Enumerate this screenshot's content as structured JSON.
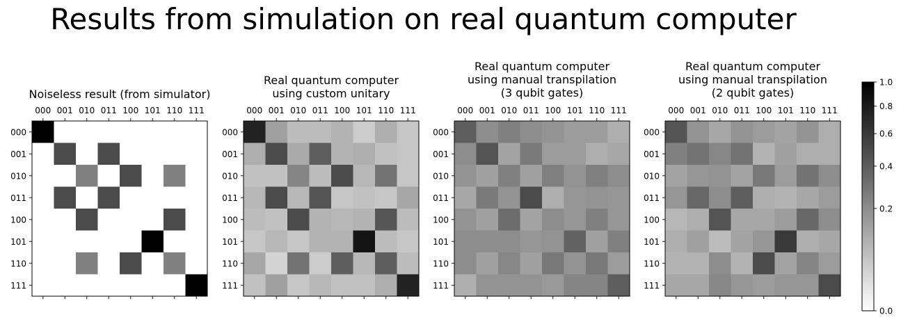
{
  "figure": {
    "title": "Results from simulation on real quantum computer"
  },
  "chart_data": [
    {
      "type": "heatmap",
      "title": "Noiseless result (from simulator)",
      "x_tick_labels": [
        "000",
        "001",
        "010",
        "011",
        "100",
        "101",
        "110",
        "111"
      ],
      "y_tick_labels": [
        "000",
        "001",
        "010",
        "011",
        "100",
        "101",
        "110",
        "111"
      ],
      "values": [
        [
          1.0,
          0,
          0,
          0,
          0,
          0,
          0,
          0
        ],
        [
          0,
          0.5,
          0,
          0.5,
          0,
          0,
          0,
          0
        ],
        [
          0,
          0,
          0.25,
          0,
          0.5,
          0,
          0.25,
          0
        ],
        [
          0,
          0.5,
          0,
          0.5,
          0,
          0,
          0,
          0
        ],
        [
          0,
          0,
          0.5,
          0,
          0,
          0,
          0.5,
          0
        ],
        [
          0,
          0,
          0,
          0,
          0,
          1.0,
          0,
          0
        ],
        [
          0,
          0,
          0.25,
          0,
          0.5,
          0,
          0.25,
          0
        ],
        [
          0,
          0,
          0,
          0,
          0,
          0,
          0,
          1.0
        ]
      ]
    },
    {
      "type": "heatmap",
      "title": "Real quantum computer\nusing custom unitary",
      "x_tick_labels": [
        "000",
        "001",
        "010",
        "011",
        "100",
        "101",
        "110",
        "111"
      ],
      "y_tick_labels": [
        "000",
        "001",
        "010",
        "011",
        "100",
        "101",
        "110",
        "111"
      ],
      "values": [
        [
          0.75,
          0.14,
          0.07,
          0.07,
          0.09,
          0.04,
          0.1,
          0.05
        ],
        [
          0.1,
          0.5,
          0.11,
          0.4,
          0.09,
          0.1,
          0.06,
          0.05
        ],
        [
          0.06,
          0.06,
          0.23,
          0.07,
          0.5,
          0.08,
          0.3,
          0.05
        ],
        [
          0.08,
          0.5,
          0.08,
          0.45,
          0.05,
          0.06,
          0.05,
          0.12
        ],
        [
          0.07,
          0.06,
          0.5,
          0.09,
          0.08,
          0.09,
          0.44,
          0.07
        ],
        [
          0.05,
          0.08,
          0.05,
          0.09,
          0.09,
          0.85,
          0.07,
          0.05
        ],
        [
          0.12,
          0.03,
          0.3,
          0.04,
          0.4,
          0.08,
          0.4,
          0.07
        ],
        [
          0.06,
          0.14,
          0.05,
          0.08,
          0.06,
          0.06,
          0.1,
          0.75
        ]
      ]
    },
    {
      "type": "heatmap",
      "title": "Real quantum computer\nusing manual transpilation\n(3 qubit gates)",
      "x_tick_labels": [
        "000",
        "001",
        "010",
        "011",
        "100",
        "101",
        "110",
        "111"
      ],
      "y_tick_labels": [
        "000",
        "001",
        "010",
        "011",
        "100",
        "101",
        "110",
        "111"
      ],
      "values": [
        [
          0.4,
          0.2,
          0.25,
          0.2,
          0.18,
          0.15,
          0.15,
          0.1
        ],
        [
          0.2,
          0.45,
          0.13,
          0.27,
          0.15,
          0.15,
          0.1,
          0.12
        ],
        [
          0.18,
          0.14,
          0.25,
          0.14,
          0.25,
          0.18,
          0.25,
          0.2
        ],
        [
          0.12,
          0.27,
          0.18,
          0.5,
          0.1,
          0.17,
          0.18,
          0.17
        ],
        [
          0.18,
          0.14,
          0.33,
          0.13,
          0.2,
          0.17,
          0.25,
          0.17
        ],
        [
          0.2,
          0.2,
          0.2,
          0.17,
          0.18,
          0.38,
          0.14,
          0.25
        ],
        [
          0.2,
          0.14,
          0.22,
          0.14,
          0.28,
          0.18,
          0.28,
          0.15
        ],
        [
          0.1,
          0.18,
          0.18,
          0.18,
          0.16,
          0.23,
          0.23,
          0.4
        ]
      ]
    },
    {
      "type": "heatmap",
      "title": "Real quantum computer\nusing manual transpilation\n(2 qubit gates)",
      "x_tick_labels": [
        "000",
        "001",
        "010",
        "011",
        "100",
        "101",
        "110",
        "111"
      ],
      "y_tick_labels": [
        "000",
        "001",
        "010",
        "011",
        "100",
        "101",
        "110",
        "111"
      ],
      "values": [
        [
          0.45,
          0.18,
          0.12,
          0.18,
          0.15,
          0.13,
          0.18,
          0.1
        ],
        [
          0.25,
          0.3,
          0.22,
          0.3,
          0.09,
          0.14,
          0.1,
          0.1
        ],
        [
          0.13,
          0.17,
          0.18,
          0.13,
          0.28,
          0.15,
          0.3,
          0.2
        ],
        [
          0.17,
          0.35,
          0.2,
          0.4,
          0.1,
          0.09,
          0.12,
          0.15
        ],
        [
          0.08,
          0.1,
          0.45,
          0.12,
          0.12,
          0.15,
          0.35,
          0.2
        ],
        [
          0.1,
          0.14,
          0.07,
          0.13,
          0.17,
          0.6,
          0.1,
          0.12
        ],
        [
          0.09,
          0.09,
          0.2,
          0.09,
          0.5,
          0.13,
          0.23,
          0.15
        ],
        [
          0.12,
          0.12,
          0.22,
          0.17,
          0.15,
          0.17,
          0.17,
          0.5
        ]
      ]
    }
  ],
  "colorbar": {
    "cmap": "gray_r",
    "range": [
      0.0,
      1.0
    ],
    "scale": "power, gamma 0.5",
    "ticks": [
      0.0,
      0.2,
      0.4,
      0.6,
      0.8,
      1.0
    ],
    "tick_labels": [
      "0.0",
      "0.2",
      "0.4",
      "0.6",
      "0.8",
      "1.0"
    ]
  }
}
